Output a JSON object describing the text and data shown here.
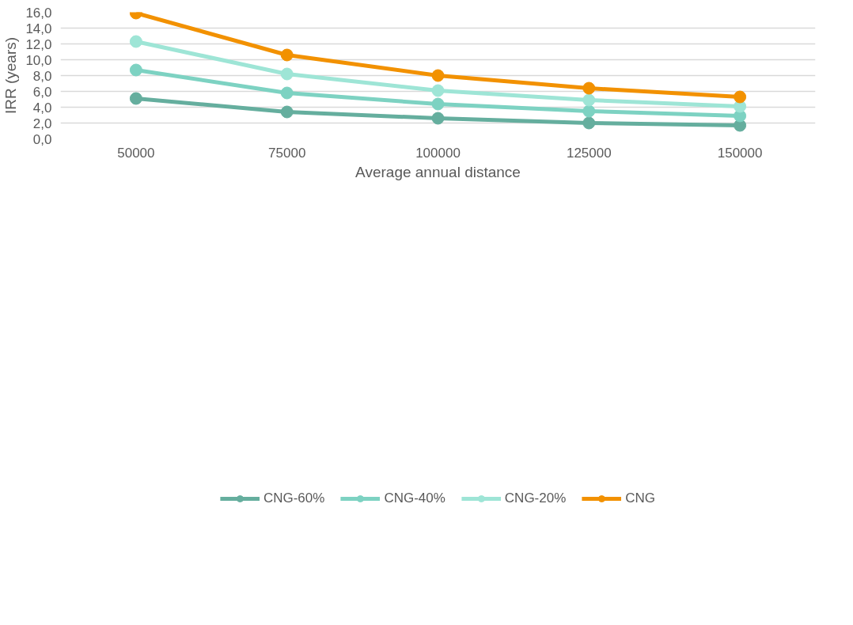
{
  "chart_data": {
    "type": "line",
    "xlabel": "Average annual distance",
    "ylabel": "IRR (years)",
    "categories": [
      "50000",
      "75000",
      "100000",
      "125000",
      "150000"
    ],
    "ylim": [
      0,
      16
    ],
    "yticks": [
      {
        "value": 0,
        "label": "0,0"
      },
      {
        "value": 2,
        "label": "2,0"
      },
      {
        "value": 4,
        "label": "4,0"
      },
      {
        "value": 6,
        "label": "6,0"
      },
      {
        "value": 8,
        "label": "8,0"
      },
      {
        "value": 10,
        "label": "10,0"
      },
      {
        "value": 12,
        "label": "12,0"
      },
      {
        "value": 14,
        "label": "14,0"
      },
      {
        "value": 16,
        "label": "16,0"
      }
    ],
    "grid": "y",
    "legend": "bottom",
    "marker": "circle",
    "line_style": "solid",
    "series": [
      {
        "name": "CNG-60%",
        "color": "#65ae9e",
        "values": [
          5.1,
          3.4,
          2.6,
          2.0,
          1.7
        ]
      },
      {
        "name": "CNG-40%",
        "color": "#7dd2c2",
        "values": [
          8.7,
          5.8,
          4.4,
          3.5,
          2.9
        ]
      },
      {
        "name": "CNG-20%",
        "color": "#9ee5d6",
        "values": [
          12.3,
          8.2,
          6.1,
          4.9,
          4.1
        ]
      },
      {
        "name": "CNG",
        "color": "#f29100",
        "values": [
          15.9,
          10.6,
          8.0,
          6.4,
          5.3
        ]
      }
    ]
  }
}
